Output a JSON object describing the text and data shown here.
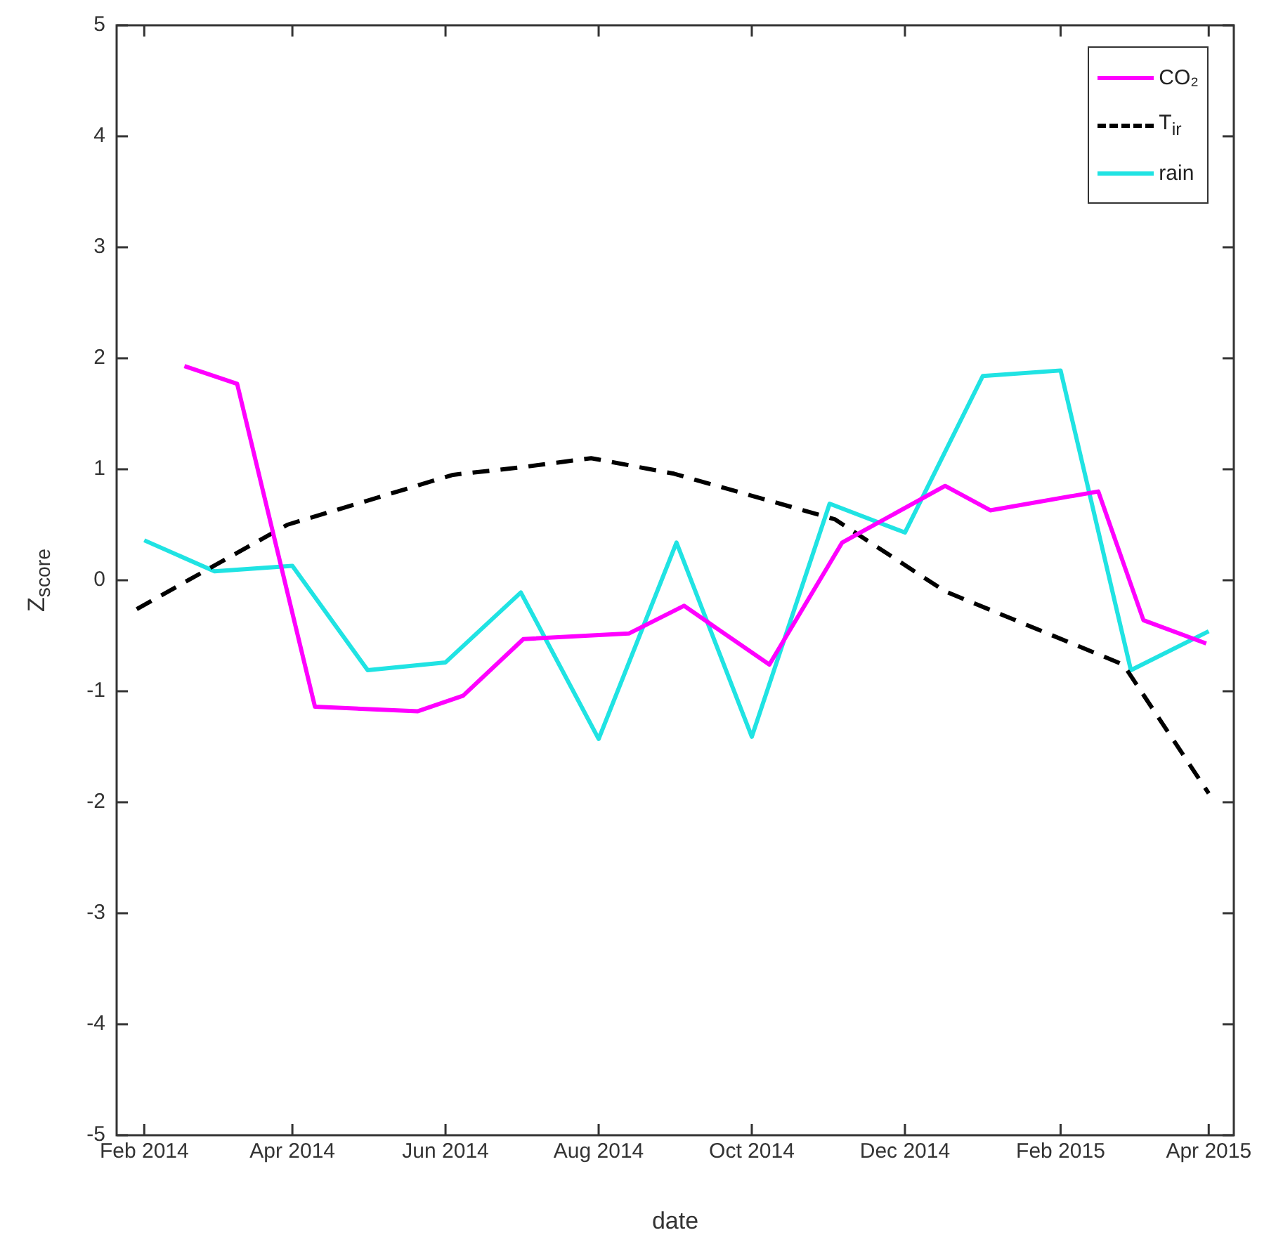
{
  "chart_data": {
    "type": "line",
    "xlabel": "date",
    "ylabel": "Z$_{score}$",
    "xlim": [
      "2014-01-21",
      "2015-04-11"
    ],
    "xticks": [
      {
        "value": "2014-02-01",
        "label": "Feb 2014"
      },
      {
        "value": "2014-04-01",
        "label": "Apr 2014"
      },
      {
        "value": "2014-06-01",
        "label": "Jun 2014"
      },
      {
        "value": "2014-08-01",
        "label": "Aug 2014"
      },
      {
        "value": "2014-10-01",
        "label": "Oct 2014"
      },
      {
        "value": "2014-12-01",
        "label": "Dec 2014"
      },
      {
        "value": "2015-02-01",
        "label": "Feb 2015"
      },
      {
        "value": "2015-04-01",
        "label": "Apr 2015"
      }
    ],
    "ylim": [
      -5,
      5
    ],
    "yticks": [
      -5,
      -4,
      -3,
      -2,
      -1,
      0,
      1,
      2,
      3,
      4,
      5
    ],
    "legend": "top right",
    "marker": "none",
    "series": [
      {
        "name": "CO₂",
        "color": "#ff00ff",
        "line_style": "solid",
        "x": [
          "2014-02-17",
          "2014-03-10",
          "2014-04-10",
          "2014-05-21",
          "2014-06-08",
          "2014-07-02",
          "2014-08-13",
          "2014-09-04",
          "2014-10-08",
          "2014-11-06",
          "2014-12-17",
          "2015-01-04",
          "2015-02-16",
          "2015-03-06",
          "2015-03-31"
        ],
        "values": [
          1.93,
          1.77,
          -1.14,
          -1.18,
          -1.04,
          -0.53,
          -0.48,
          -0.23,
          -0.76,
          0.34,
          0.85,
          0.63,
          0.8,
          -0.36,
          -0.57
        ]
      },
      {
        "name": "T$_{ir}$",
        "color": "#000000",
        "line_style": "dashed",
        "x": [
          "2014-01-29",
          "2014-03-30",
          "2014-06-04",
          "2014-07-02",
          "2014-07-29",
          "2014-08-31",
          "2014-11-03",
          "2014-12-17",
          "2015-02-26",
          "2015-04-01"
        ],
        "values": [
          -0.26,
          0.5,
          0.95,
          1.02,
          1.1,
          0.96,
          0.55,
          -0.1,
          -0.76,
          -1.92
        ]
      },
      {
        "name": "rain",
        "color": "#20e3e3",
        "line_style": "solid",
        "x": [
          "2014-02-01",
          "2014-03-01",
          "2014-04-01",
          "2014-05-01",
          "2014-06-01",
          "2014-07-01",
          "2014-08-01",
          "2014-09-01",
          "2014-10-01",
          "2014-11-01",
          "2014-12-01",
          "2015-01-01",
          "2015-02-01",
          "2015-03-01",
          "2015-04-01"
        ],
        "values": [
          0.36,
          0.08,
          0.13,
          -0.81,
          -0.74,
          -0.11,
          -1.43,
          0.34,
          -1.41,
          0.69,
          0.43,
          1.84,
          1.89,
          -0.81,
          -0.46
        ]
      }
    ]
  }
}
